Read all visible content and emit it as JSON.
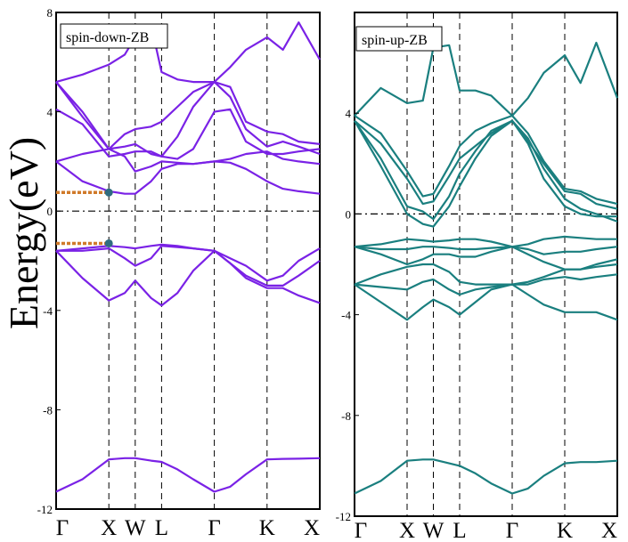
{
  "chart_data": [
    {
      "type": "line",
      "title": "spin-down-ZB",
      "ylabel": "Energy(eV)",
      "ylim": [
        -12,
        8
      ],
      "yticks": [
        "8",
        "4",
        "0",
        "-4",
        "-8",
        "-12"
      ],
      "x_labels": [
        "Γ",
        "X",
        "W",
        "L",
        "Γ",
        "K",
        "X"
      ],
      "x_label_positions": [
        0,
        1,
        1.5,
        2,
        3,
        4,
        5
      ],
      "fermi_level": 0,
      "grid": "dashed vertical lines at symmetry points",
      "line_color": "#7a22e6",
      "marker_color": "#2f6c80",
      "gap_marker_color": "#d07a2a",
      "markers": [
        {
          "x": 1,
          "y": 0.75
        },
        {
          "x": 1,
          "y": -1.3
        }
      ],
      "bands": [
        {
          "x": [
            0,
            0.5,
            1,
            1.3,
            1.5,
            1.8,
            2,
            2.3,
            2.6,
            3,
            3.3,
            3.6,
            4,
            4.3,
            4.6,
            5
          ],
          "y": [
            -11.3,
            -10.8,
            -10.0,
            -9.95,
            -9.95,
            -10.05,
            -10.1,
            -10.4,
            -10.8,
            -11.3,
            -11.1,
            -10.6,
            -10.0,
            -9.98,
            -9.97,
            -9.95
          ]
        },
        {
          "x": [
            0,
            0.5,
            1,
            1.3,
            1.5,
            1.8,
            2,
            2.3,
            2.6,
            3,
            3.3,
            3.6,
            4,
            4.3,
            4.6,
            5
          ],
          "y": [
            -1.6,
            -1.5,
            -1.4,
            -1.45,
            -1.5,
            -1.4,
            -1.35,
            -1.4,
            -1.5,
            -1.6,
            -1.9,
            -2.2,
            -2.8,
            -2.6,
            -2.0,
            -1.5
          ]
        },
        {
          "x": [
            0,
            0.5,
            1,
            1.3,
            1.5,
            1.8,
            2,
            2.3,
            2.6,
            3,
            3.3,
            3.6,
            4,
            4.3,
            4.6,
            5
          ],
          "y": [
            -1.6,
            -1.6,
            -1.5,
            -1.9,
            -2.2,
            -1.9,
            -1.4,
            -1.45,
            -1.5,
            -1.6,
            -2.1,
            -2.6,
            -3.0,
            -3.0,
            -2.6,
            -2.0
          ]
        },
        {
          "x": [
            0,
            0.5,
            1,
            1.3,
            1.5,
            1.8,
            2,
            2.3,
            2.6,
            3,
            3.3,
            3.6,
            4,
            4.3,
            4.6,
            5
          ],
          "y": [
            -1.6,
            -2.7,
            -3.6,
            -3.3,
            -2.8,
            -3.5,
            -3.8,
            -3.3,
            -2.4,
            -1.6,
            -2.1,
            -2.7,
            -3.1,
            -3.1,
            -3.4,
            -3.7
          ]
        },
        {
          "x": [
            0,
            0.5,
            1,
            1.3,
            1.5,
            1.8,
            2,
            2.3,
            2.6,
            3,
            3.3,
            3.6,
            4,
            4.3,
            4.6,
            5
          ],
          "y": [
            2.0,
            1.2,
            0.8,
            0.7,
            0.7,
            1.2,
            1.7,
            1.9,
            1.9,
            2.0,
            1.95,
            1.7,
            1.2,
            0.9,
            0.8,
            0.7
          ]
        },
        {
          "x": [
            0,
            0.5,
            1,
            1.3,
            1.5,
            1.8,
            2,
            2.3,
            2.6,
            3,
            3.3,
            3.6,
            4,
            4.3,
            4.6,
            5
          ],
          "y": [
            2.0,
            2.3,
            2.5,
            2.2,
            1.6,
            1.8,
            2.0,
            1.95,
            1.9,
            2.0,
            2.1,
            2.3,
            2.4,
            2.1,
            2.0,
            1.9
          ]
        },
        {
          "x": [
            0,
            0.5,
            1,
            1.3,
            1.5,
            1.8,
            2,
            2.3,
            2.6,
            3,
            3.3,
            3.6,
            4,
            4.3,
            4.6,
            5
          ],
          "y": [
            4.1,
            3.5,
            2.2,
            2.3,
            2.4,
            2.4,
            2.2,
            2.1,
            2.5,
            4.0,
            4.1,
            2.8,
            2.3,
            2.3,
            2.4,
            2.5
          ]
        },
        {
          "x": [
            0,
            0.5,
            1,
            1.3,
            1.5,
            1.8,
            2,
            2.3,
            2.6,
            3,
            3.3,
            3.6,
            4,
            4.3,
            4.6,
            5
          ],
          "y": [
            5.2,
            4.0,
            2.5,
            2.6,
            2.7,
            2.3,
            2.2,
            3.0,
            4.2,
            5.2,
            4.6,
            3.3,
            2.6,
            2.8,
            2.6,
            2.3
          ]
        },
        {
          "x": [
            0,
            0.5,
            1,
            1.3,
            1.5,
            1.8,
            2,
            2.3,
            2.6,
            3,
            3.3,
            3.6,
            4,
            4.3,
            4.6,
            5
          ],
          "y": [
            5.2,
            3.8,
            2.5,
            3.1,
            3.3,
            3.4,
            3.6,
            4.2,
            4.8,
            5.2,
            5.0,
            3.6,
            3.2,
            3.1,
            2.8,
            2.7
          ]
        },
        {
          "x": [
            0,
            0.5,
            1,
            1.3,
            1.5,
            1.8,
            2,
            2.3,
            2.6,
            3,
            3.3,
            3.6,
            4,
            4.3,
            4.6,
            5
          ],
          "y": [
            5.2,
            5.5,
            5.9,
            6.3,
            7.0,
            7.5,
            5.6,
            5.3,
            5.2,
            5.2,
            5.8,
            6.5,
            7.0,
            6.5,
            7.6,
            6.1
          ]
        }
      ]
    },
    {
      "type": "line",
      "title": "spin-up-ZB",
      "ylim": [
        -12,
        8
      ],
      "yticks": [
        "4",
        "0",
        "-4",
        "-8",
        "-12"
      ],
      "x_labels": [
        "Γ",
        "X",
        "W",
        "L",
        "Γ",
        "K",
        "X"
      ],
      "x_label_positions": [
        0,
        1,
        1.5,
        2,
        3,
        4,
        5
      ],
      "fermi_level": 0,
      "grid": "dashed vertical lines at symmetry points",
      "line_color": "#1a7f7f",
      "bands": [
        {
          "x": [
            0,
            0.5,
            1,
            1.3,
            1.5,
            1.8,
            2,
            2.3,
            2.6,
            3,
            3.3,
            3.6,
            4,
            4.3,
            4.6,
            5
          ],
          "y": [
            -11.1,
            -10.6,
            -9.8,
            -9.75,
            -9.75,
            -9.9,
            -10.0,
            -10.3,
            -10.7,
            -11.1,
            -10.9,
            -10.4,
            -9.9,
            -9.85,
            -9.85,
            -9.8
          ]
        },
        {
          "x": [
            0,
            0.5,
            1,
            1.3,
            1.5,
            1.8,
            2,
            2.3,
            2.6,
            3,
            3.3,
            3.6,
            4,
            4.3,
            4.6,
            5
          ],
          "y": [
            -1.3,
            -1.2,
            -1.0,
            -1.05,
            -1.1,
            -1.05,
            -1.0,
            -1.0,
            -1.1,
            -1.3,
            -1.2,
            -1.0,
            -0.9,
            -0.95,
            -1.0,
            -1.0
          ]
        },
        {
          "x": [
            0,
            0.5,
            1,
            1.3,
            1.5,
            1.8,
            2,
            2.3,
            2.6,
            3,
            3.3,
            3.6,
            4,
            4.3,
            4.6,
            5
          ],
          "y": [
            -1.3,
            -1.4,
            -1.4,
            -1.3,
            -1.3,
            -1.35,
            -1.4,
            -1.4,
            -1.35,
            -1.3,
            -1.4,
            -1.6,
            -1.5,
            -1.5,
            -1.4,
            -1.3
          ]
        },
        {
          "x": [
            0,
            0.5,
            1,
            1.3,
            1.5,
            1.8,
            2,
            2.3,
            2.6,
            3,
            3.3,
            3.6,
            4,
            4.3,
            4.6,
            5
          ],
          "y": [
            -1.3,
            -1.6,
            -2.0,
            -1.8,
            -1.6,
            -1.6,
            -1.7,
            -1.7,
            -1.5,
            -1.3,
            -1.6,
            -1.9,
            -2.2,
            -2.2,
            -2.0,
            -1.8
          ]
        },
        {
          "x": [
            0,
            0.5,
            1,
            1.3,
            1.5,
            1.8,
            2,
            2.3,
            2.6,
            3,
            3.3,
            3.6,
            4,
            4.3,
            4.6,
            5
          ],
          "y": [
            -2.8,
            -2.4,
            -2.1,
            -2.0,
            -2.0,
            -2.3,
            -2.7,
            -2.8,
            -2.8,
            -2.8,
            -2.7,
            -2.5,
            -2.2,
            -2.2,
            -2.1,
            -2.0
          ]
        },
        {
          "x": [
            0,
            0.5,
            1,
            1.3,
            1.5,
            1.8,
            2,
            2.3,
            2.6,
            3,
            3.3,
            3.6,
            4,
            4.3,
            4.6,
            5
          ],
          "y": [
            -2.8,
            -2.9,
            -3.0,
            -2.7,
            -2.6,
            -3.0,
            -3.2,
            -3.0,
            -2.9,
            -2.8,
            -2.8,
            -2.6,
            -2.5,
            -2.6,
            -2.5,
            -2.4
          ]
        },
        {
          "x": [
            0,
            0.5,
            1,
            1.3,
            1.5,
            1.8,
            2,
            2.3,
            2.6,
            3,
            3.3,
            3.6,
            4,
            4.3,
            4.6,
            5
          ],
          "y": [
            -2.8,
            -3.5,
            -4.2,
            -3.7,
            -3.4,
            -3.7,
            -4.0,
            -3.5,
            -3.0,
            -2.8,
            -3.2,
            -3.6,
            -3.9,
            -3.9,
            -3.9,
            -4.2
          ]
        },
        {
          "x": [
            0,
            0.5,
            1,
            1.3,
            1.5,
            1.8,
            2,
            2.3,
            2.6,
            3,
            3.3,
            3.6,
            4,
            4.3,
            4.6,
            5
          ],
          "y": [
            3.7,
            2.2,
            0.3,
            0.1,
            -0.2,
            0.7,
            1.6,
            2.5,
            3.3,
            3.7,
            3.0,
            1.8,
            0.6,
            0.2,
            0.0,
            -0.3
          ]
        },
        {
          "x": [
            0,
            0.5,
            1,
            1.3,
            1.5,
            1.8,
            2,
            2.3,
            2.6,
            3,
            3.3,
            3.6,
            4,
            4.3,
            4.6,
            5
          ],
          "y": [
            3.7,
            1.9,
            0.0,
            -0.4,
            -0.5,
            0.3,
            1.1,
            2.2,
            3.1,
            3.7,
            2.8,
            1.4,
            0.3,
            0.0,
            -0.1,
            -0.1
          ]
        },
        {
          "x": [
            0,
            0.5,
            1,
            1.3,
            1.5,
            1.8,
            2,
            2.3,
            2.6,
            3,
            3.3,
            3.6,
            4,
            4.3,
            4.6,
            5
          ],
          "y": [
            3.7,
            2.8,
            1.4,
            0.4,
            0.5,
            1.5,
            2.2,
            2.7,
            3.2,
            3.7,
            2.9,
            2.0,
            0.9,
            0.8,
            0.4,
            0.2
          ]
        },
        {
          "x": [
            0,
            0.5,
            1,
            1.3,
            1.5,
            1.8,
            2,
            2.3,
            2.6,
            3,
            3.3,
            3.6,
            4,
            4.3,
            4.6,
            5
          ],
          "y": [
            3.9,
            3.2,
            1.7,
            0.7,
            0.8,
            1.9,
            2.7,
            3.3,
            3.6,
            3.9,
            3.2,
            2.1,
            1.0,
            0.9,
            0.6,
            0.4
          ]
        },
        {
          "x": [
            0,
            0.5,
            1,
            1.3,
            1.5,
            1.8,
            2,
            2.3,
            2.6,
            3,
            3.3,
            3.6,
            4,
            4.3,
            4.6,
            5
          ],
          "y": [
            3.9,
            5.0,
            4.4,
            4.5,
            6.6,
            6.7,
            4.9,
            4.9,
            4.7,
            3.9,
            4.6,
            5.6,
            6.3,
            5.2,
            6.8,
            4.6
          ]
        }
      ]
    }
  ]
}
